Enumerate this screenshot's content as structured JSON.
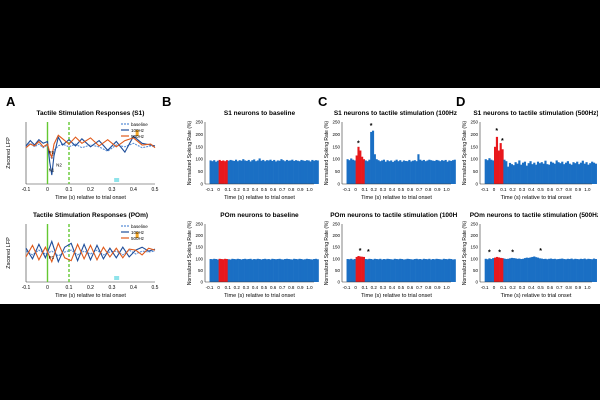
{
  "panel_letters": {
    "A": "A",
    "B": "B",
    "C": "C",
    "D": "D"
  },
  "colors": {
    "baseline": "#5b8fd6",
    "hz100": "#1f4e9a",
    "hz500": "#e05a1b",
    "bar": "#1a6fc4",
    "stim": "#e8181c",
    "green": "#64c832",
    "cyan": "#8fe3ea",
    "orange": "#f5a623"
  },
  "chart_data": [
    {
      "id": "A1",
      "type": "line",
      "title": "Tactile Stimulation Responses (S1)",
      "ylabel": "Zscored LFP",
      "xlabel": "Time (s) relative to trial onset",
      "x_ticks": [
        "-0.1",
        "0",
        "0.1",
        "0.2",
        "0.3",
        "0.4",
        "0.5"
      ],
      "xlim": [
        -0.1,
        0.5
      ],
      "ylim": [
        -4,
        3
      ],
      "legend": [
        "baseline",
        "100Hz",
        "500Hz"
      ],
      "annotations": [
        "P1",
        "N1",
        "N2"
      ],
      "series": [
        {
          "name": "baseline",
          "x": [
            -0.1,
            -0.08,
            -0.06,
            -0.04,
            -0.02,
            0,
            0.01,
            0.02,
            0.03,
            0.05,
            0.07,
            0.1,
            0.13,
            0.16,
            0.2,
            0.24,
            0.28,
            0.32,
            0.36,
            0.4,
            0.44,
            0.48,
            0.5
          ],
          "y": [
            0.2,
            0.6,
            0.2,
            0.5,
            0.1,
            0.4,
            -0.5,
            -1.2,
            -0.2,
            0.3,
            0.5,
            0.2,
            0.5,
            0.1,
            0.4,
            0.2,
            -0.3,
            0.4,
            0.2,
            0.6,
            0.1,
            0.3,
            0.2
          ]
        },
        {
          "name": "100Hz",
          "x": [
            -0.1,
            -0.08,
            -0.06,
            -0.04,
            -0.02,
            0,
            0.01,
            0.02,
            0.03,
            0.05,
            0.07,
            0.1,
            0.13,
            0.16,
            0.2,
            0.24,
            0.28,
            0.32,
            0.36,
            0.4,
            0.44,
            0.48,
            0.5
          ],
          "y": [
            0.3,
            0.9,
            0.4,
            1.0,
            0.6,
            0.8,
            -1.5,
            -3.0,
            -0.8,
            1.3,
            0.4,
            1.0,
            0.3,
            1.1,
            0.2,
            0.9,
            -0.2,
            0.8,
            -0.4,
            1.4,
            0.6,
            0.4,
            0.3
          ]
        },
        {
          "name": "500Hz",
          "x": [
            -0.1,
            -0.08,
            -0.06,
            -0.04,
            -0.02,
            0,
            0.01,
            0.02,
            0.03,
            0.05,
            0.07,
            0.1,
            0.13,
            0.16,
            0.2,
            0.24,
            0.28,
            0.32,
            0.36,
            0.4,
            0.44,
            0.48,
            0.5
          ],
          "y": [
            0.1,
            0.5,
            0.3,
            0.8,
            0.2,
            0.5,
            -0.4,
            -1.0,
            0.5,
            1.5,
            1.1,
            0.5,
            1.3,
            0.6,
            1.2,
            0.3,
            1.0,
            0.2,
            0.9,
            1.2,
            0.4,
            0.5,
            0.1
          ]
        }
      ]
    },
    {
      "id": "A2",
      "type": "line",
      "title": "Tactile Stimulation Responses (POm)",
      "ylabel": "Zscored LFP",
      "xlabel": "Time (s) relative to trial onset",
      "x_ticks": [
        "-0.1",
        "0",
        "0.1",
        "0.2",
        "0.3",
        "0.4",
        "0.5"
      ],
      "xlim": [
        -0.1,
        0.5
      ],
      "ylim": [
        -3,
        3
      ],
      "legend": [
        "baseline",
        "100Hz",
        "500Hz"
      ],
      "annotations": [
        "P1"
      ],
      "series": [
        {
          "name": "baseline",
          "x": [
            -0.1,
            -0.07,
            -0.04,
            -0.01,
            0.02,
            0.05,
            0.08,
            0.11,
            0.14,
            0.17,
            0.2,
            0.23,
            0.26,
            0.29,
            0.32,
            0.35,
            0.38,
            0.41,
            0.44,
            0.47,
            0.5
          ],
          "y": [
            0.2,
            -0.2,
            0.3,
            -0.1,
            0.2,
            -0.3,
            0.1,
            0.3,
            -0.2,
            0.2,
            -0.1,
            0.3,
            -0.2,
            0.1,
            0.2,
            -0.2,
            0.3,
            -0.1,
            0.2,
            0.1,
            0.2
          ]
        },
        {
          "name": "100Hz",
          "x": [
            -0.1,
            -0.07,
            -0.04,
            -0.01,
            0.02,
            0.05,
            0.08,
            0.11,
            0.14,
            0.17,
            0.2,
            0.23,
            0.26,
            0.29,
            0.32,
            0.35,
            0.38,
            0.41,
            0.44,
            0.47,
            0.5
          ],
          "y": [
            0.5,
            -0.6,
            0.9,
            -0.5,
            1.2,
            -0.9,
            0.6,
            1.0,
            -0.8,
            0.9,
            -0.7,
            0.8,
            -0.6,
            0.5,
            -0.5,
            0.6,
            -0.4,
            0.3,
            0.6,
            0.2,
            0.4
          ]
        },
        {
          "name": "500Hz",
          "x": [
            -0.1,
            -0.07,
            -0.04,
            -0.01,
            0.02,
            0.05,
            0.08,
            0.11,
            0.14,
            0.17,
            0.2,
            0.23,
            0.26,
            0.29,
            0.32,
            0.35,
            0.38,
            0.41,
            0.44,
            0.47,
            0.5
          ],
          "y": [
            -0.4,
            0.8,
            -0.7,
            0.6,
            -0.9,
            1.0,
            -0.5,
            -0.8,
            0.9,
            -0.6,
            0.8,
            -0.7,
            0.6,
            -0.4,
            0.5,
            -0.5,
            0.4,
            0.3,
            -0.2,
            0.5,
            0.3
          ]
        }
      ]
    },
    {
      "id": "B1",
      "type": "bar",
      "title": "S1 neurons to baseline",
      "ylabel": "Normalized Spiking Rate (%)",
      "xlabel": "Time (s) relative to trial onset",
      "x_ticks": [
        "-0.1",
        "0",
        "0.1",
        "0.2",
        "0.3",
        "0.4",
        "0.5",
        "0.6",
        "0.7",
        "0.8",
        "0.9",
        "1.0"
      ],
      "ylim": [
        0,
        250
      ],
      "y_ticks": [
        "0",
        "50",
        "100",
        "150",
        "200",
        "250"
      ],
      "xlim": [
        -0.15,
        1.05
      ],
      "bin_start": -0.1,
      "bin_width": 0.02,
      "stim_range": [
        0,
        0.1
      ],
      "asterisks": [],
      "values": [
        95,
        92,
        96,
        90,
        94,
        97,
        93,
        95,
        92,
        96,
        94,
        97,
        95,
        93,
        98,
        92,
        96,
        94,
        100,
        95,
        93,
        97,
        91,
        96,
        99,
        92,
        95,
        103,
        94,
        97,
        92,
        96,
        95,
        98,
        93,
        97,
        91,
        95,
        94,
        100,
        96,
        92,
        97,
        94,
        95,
        98,
        93,
        96,
        94,
        92,
        97,
        95,
        93,
        96,
        95,
        91,
        97,
        94,
        96,
        95
      ]
    },
    {
      "id": "B2",
      "type": "bar",
      "title": "POm neurons to baseline",
      "ylabel": "Normalized Spiking Rate (%)",
      "xlabel": "Time (s) relative to trial onset",
      "x_ticks": [
        "-0.1",
        "0",
        "0.1",
        "0.2",
        "0.3",
        "0.4",
        "0.5",
        "0.6",
        "0.7",
        "0.8",
        "0.9",
        "1.0"
      ],
      "ylim": [
        0,
        250
      ],
      "y_ticks": [
        "0",
        "50",
        "100",
        "150",
        "200",
        "250"
      ],
      "xlim": [
        -0.15,
        1.05
      ],
      "bin_start": -0.1,
      "bin_width": 0.02,
      "stim_range": [
        0,
        0.1
      ],
      "asterisks": [],
      "values": [
        99,
        98,
        100,
        99,
        97,
        100,
        99,
        98,
        100,
        99,
        98,
        97,
        100,
        99,
        98,
        100,
        99,
        97,
        99,
        100,
        98,
        99,
        100,
        97,
        99,
        98,
        100,
        99,
        97,
        99,
        100,
        98,
        99,
        97,
        100,
        99,
        98,
        99,
        100,
        98,
        97,
        99,
        100,
        99,
        98,
        97,
        100,
        99,
        98,
        100,
        99,
        97,
        98,
        100,
        99,
        98,
        97,
        99,
        100,
        98
      ]
    },
    {
      "id": "C1",
      "type": "bar",
      "title": "S1 neurons to tactile stimulation (100Hz)",
      "ylabel": "Normalized Spiking Rate (%)",
      "xlabel": "Time (s) relative to trial onset",
      "x_ticks": [
        "-0.1",
        "0",
        "0.1",
        "0.2",
        "0.3",
        "0.4",
        "0.5",
        "0.6",
        "0.7",
        "0.8",
        "0.9",
        "1.0"
      ],
      "ylim": [
        0,
        250
      ],
      "y_ticks": [
        "0",
        "50",
        "100",
        "150",
        "200",
        "250"
      ],
      "xlim": [
        -0.15,
        1.05
      ],
      "bin_start": -0.1,
      "bin_width": 0.02,
      "stim_range": [
        0,
        0.1
      ],
      "asterisks": [
        {
          "x": 0.03,
          "y": 155,
          "label": "*"
        },
        {
          "x": 0.17,
          "y": 225,
          "label": "*"
        }
      ],
      "values": [
        100,
        96,
        103,
        98,
        95,
        115,
        150,
        135,
        110,
        100,
        95,
        92,
        98,
        210,
        215,
        120,
        100,
        96,
        92,
        95,
        98,
        90,
        96,
        92,
        95,
        89,
        94,
        98,
        92,
        96,
        90,
        95,
        93,
        92,
        97,
        91,
        94,
        96,
        92,
        120,
        98,
        94,
        97,
        92,
        95,
        98,
        96,
        94,
        93,
        97,
        95,
        92,
        96,
        94,
        97,
        90,
        95,
        93,
        96,
        98
      ]
    },
    {
      "id": "C2",
      "type": "bar",
      "title": "POm neurons to tactile stimulation (100Hz)",
      "ylabel": "Normalized Spiking Rate (%)",
      "xlabel": "Time (s) relative to trial onset",
      "x_ticks": [
        "-0.1",
        "0",
        "0.1",
        "0.2",
        "0.3",
        "0.4",
        "0.5",
        "0.6",
        "0.7",
        "0.8",
        "0.9",
        "1.0"
      ],
      "ylim": [
        0,
        250
      ],
      "y_ticks": [
        "0",
        "50",
        "100",
        "150",
        "200",
        "250"
      ],
      "xlim": [
        -0.15,
        1.05
      ],
      "bin_start": -0.1,
      "bin_width": 0.02,
      "stim_range": [
        0,
        0.1
      ],
      "asterisks": [
        {
          "x": 0.05,
          "y": 125,
          "label": "*"
        },
        {
          "x": 0.14,
          "y": 120,
          "label": "*"
        }
      ],
      "values": [
        99,
        98,
        100,
        97,
        99,
        108,
        112,
        110,
        109,
        108,
        99,
        98,
        100,
        99,
        97,
        100,
        99,
        98,
        100,
        97,
        99,
        98,
        100,
        99,
        98,
        97,
        100,
        99,
        98,
        100,
        99,
        97,
        98,
        100,
        99,
        98,
        97,
        99,
        100,
        98,
        99,
        97,
        100,
        99,
        98,
        100,
        97,
        99,
        98,
        100,
        99,
        98,
        97,
        100,
        99,
        98,
        100,
        99,
        97,
        98
      ]
    },
    {
      "id": "D1",
      "type": "bar",
      "title": "S1 neurons to tactile stimulation (500Hz)",
      "ylabel": "Normalized Spiking Rate (%)",
      "xlabel": "Time (s) relative to trial onset",
      "x_ticks": [
        "-0.1",
        "0",
        "0.1",
        "0.2",
        "0.3",
        "0.4",
        "0.5",
        "0.6",
        "0.7",
        "0.8",
        "0.9",
        "1.0"
      ],
      "ylim": [
        0,
        250
      ],
      "y_ticks": [
        "0",
        "50",
        "100",
        "150",
        "200",
        "250"
      ],
      "xlim": [
        -0.15,
        1.05
      ],
      "bin_start": -0.1,
      "bin_width": 0.02,
      "stim_range": [
        0,
        0.1
      ],
      "asterisks": [
        {
          "x": 0.03,
          "y": 205,
          "label": "*"
        },
        {
          "x": 0.09,
          "y": 165,
          "label": "*"
        }
      ],
      "values": [
        100,
        96,
        104,
        98,
        95,
        150,
        190,
        135,
        165,
        140,
        98,
        92,
        70,
        85,
        80,
        76,
        88,
        82,
        95,
        78,
        86,
        90,
        74,
        84,
        92,
        80,
        86,
        78,
        90,
        84,
        88,
        82,
        94,
        80,
        78,
        90,
        86,
        82,
        95,
        88,
        84,
        90,
        80,
        86,
        92,
        82,
        78,
        88,
        84,
        90,
        80,
        86,
        94,
        82,
        88,
        78,
        84,
        90,
        86,
        82
      ]
    },
    {
      "id": "D2",
      "type": "bar",
      "title": "POm neurons to tactile stimulation (500Hz)",
      "ylabel": "Normalized Spiking Rate (%)",
      "xlabel": "Time (s) relative to trial onset",
      "x_ticks": [
        "-0.1",
        "0",
        "0.1",
        "0.2",
        "0.3",
        "0.4",
        "0.5",
        "0.6",
        "0.7",
        "0.8",
        "0.9",
        "1.0"
      ],
      "ylim": [
        0,
        250
      ],
      "y_ticks": [
        "0",
        "50",
        "100",
        "150",
        "200",
        "250"
      ],
      "xlim": [
        -0.15,
        1.05
      ],
      "bin_start": -0.1,
      "bin_width": 0.02,
      "stim_range": [
        0,
        0.1
      ],
      "asterisks": [
        {
          "x": -0.05,
          "y": 118,
          "label": "*"
        },
        {
          "x": 0.06,
          "y": 118,
          "label": "*"
        },
        {
          "x": 0.2,
          "y": 118,
          "label": "*"
        },
        {
          "x": 0.5,
          "y": 125,
          "label": "*"
        }
      ],
      "values": [
        100,
        98,
        102,
        99,
        103,
        105,
        108,
        106,
        104,
        103,
        101,
        99,
        100,
        102,
        104,
        103,
        102,
        100,
        101,
        99,
        100,
        103,
        105,
        104,
        106,
        108,
        110,
        107,
        105,
        102,
        101,
        99,
        100,
        98,
        100,
        101,
        99,
        100,
        98,
        99,
        100,
        101,
        99,
        98,
        100,
        99,
        101,
        98,
        100,
        99,
        98,
        100,
        99,
        101,
        98,
        100,
        99,
        98,
        101,
        99
      ]
    }
  ]
}
